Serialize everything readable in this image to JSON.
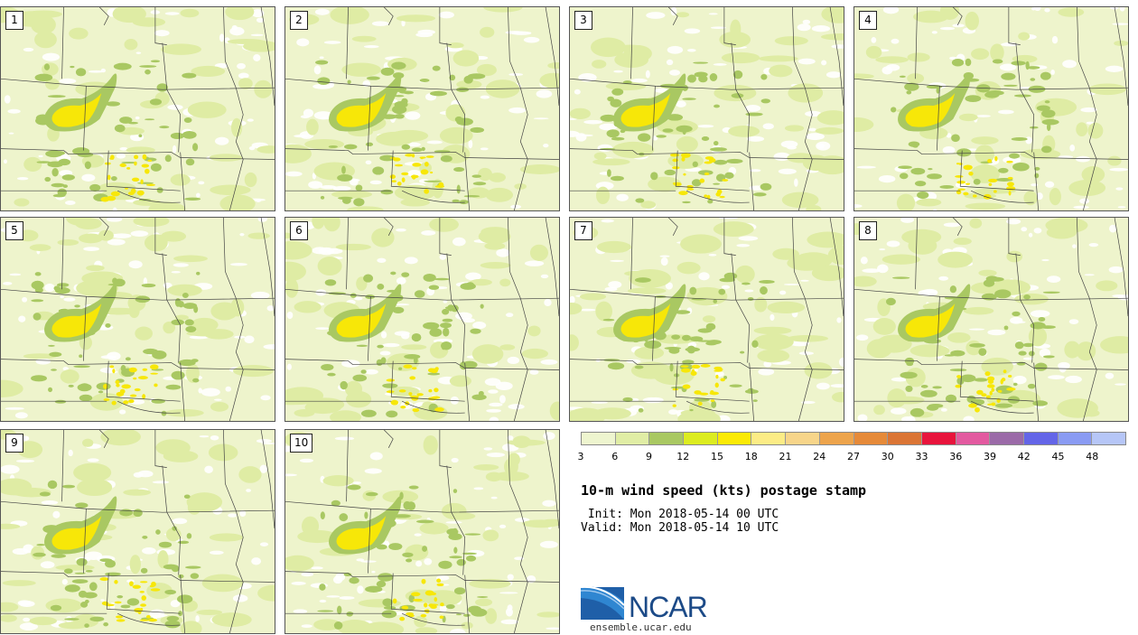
{
  "panels": [
    {
      "label": "1"
    },
    {
      "label": "2"
    },
    {
      "label": "3"
    },
    {
      "label": "4"
    },
    {
      "label": "5"
    },
    {
      "label": "6"
    },
    {
      "label": "7"
    },
    {
      "label": "8"
    },
    {
      "label": "9"
    },
    {
      "label": "10"
    }
  ],
  "legend": {
    "ticks": [
      "3",
      "6",
      "9",
      "12",
      "15",
      "18",
      "21",
      "24",
      "27",
      "30",
      "33",
      "36",
      "39",
      "42",
      "45",
      "48"
    ],
    "colors": [
      "#eef5cf",
      "#e0eda5",
      "#a9c862",
      "#dcec20",
      "#fbea05",
      "#fcec86",
      "#f7d58a",
      "#eda44c",
      "#e68a39",
      "#db7535",
      "#e8143c",
      "#e35aa0",
      "#9b6aa8",
      "#6465e8",
      "#8a9bf3",
      "#b6c6f7"
    ]
  },
  "title": "10-m wind speed (kts) postage stamp",
  "init_line": " Init: Mon 2018-05-14 00 UTC",
  "valid_line": "Valid: Mon 2018-05-14 10 UTC",
  "logo": {
    "name": "NCAR",
    "url": "ensemble.ucar.edu"
  },
  "map_colors": {
    "background": "#eef4cc",
    "light_green": "#dfeca4",
    "mid_green": "#a9c862",
    "yellow": "#f7e708",
    "white": "#ffffff",
    "border": "#444444"
  }
}
